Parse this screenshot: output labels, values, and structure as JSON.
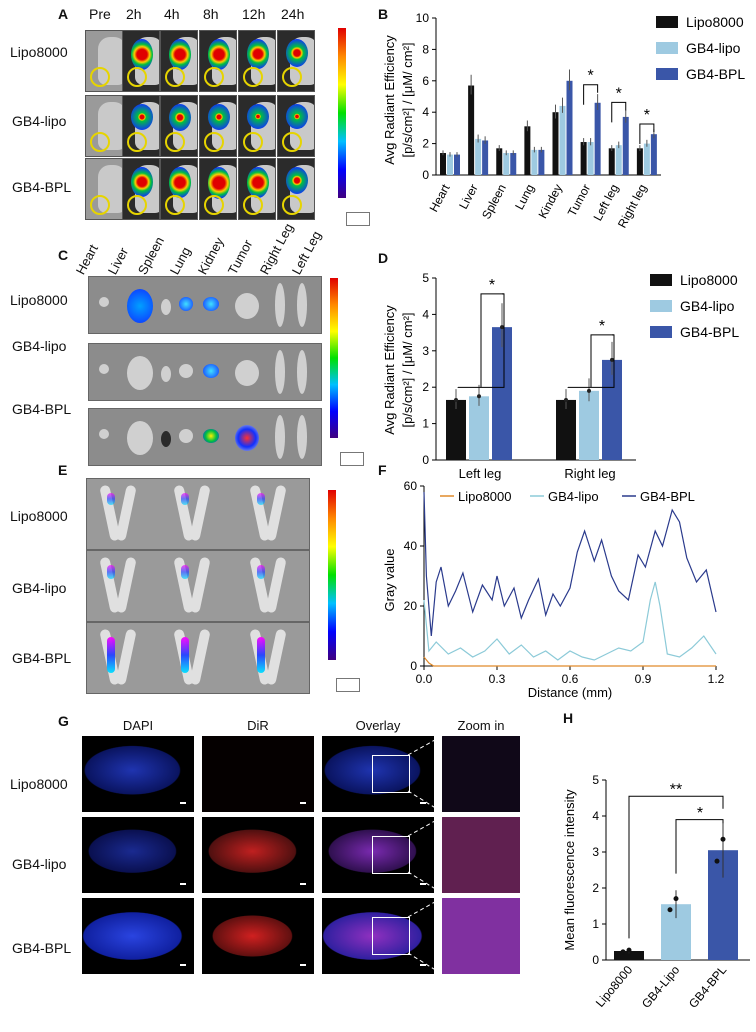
{
  "panels": {
    "a": "A",
    "b": "B",
    "c": "C",
    "d": "D",
    "e": "E",
    "f": "F",
    "g": "G",
    "h": "H"
  },
  "groups": [
    "Lipo8000",
    "GB4-lipo",
    "GB4-BPL"
  ],
  "panel_a": {
    "timepoints": [
      "Pre",
      "2h",
      "4h",
      "8h",
      "12h",
      "24h"
    ]
  },
  "panel_c": {
    "organs": [
      "Heart",
      "Liver",
      "Spleen",
      "Lung",
      "Kidney",
      "Tumor",
      "Right Leg",
      "Left Leg"
    ]
  },
  "panel_g": {
    "columns": [
      "DAPI",
      "DiR",
      "Overlay",
      "Zoom in"
    ]
  },
  "colors": {
    "lipo8000": "#111111",
    "gb4lipo": "#9ecae1",
    "gb4bpl": "#3a56a8"
  },
  "chart_data": [
    {
      "id": "B",
      "type": "bar",
      "title": "",
      "ylabel_line1": "Avg Radiant Efficiency",
      "ylabel_line2": "[p/s/cm²] / [μM/ cm²]",
      "categories": [
        "Heart",
        "Liver",
        "Spleen",
        "Lung",
        "Kindey",
        "Tumor",
        "Left leg",
        "Right leg"
      ],
      "ylim": [
        0,
        10
      ],
      "yticks": [
        "0",
        "2",
        "4",
        "6",
        "8",
        "10"
      ],
      "series": [
        {
          "name": "Lipo8000",
          "values": [
            1.4,
            5.7,
            1.7,
            3.1,
            4.0,
            2.1,
            1.7,
            1.7
          ]
        },
        {
          "name": "GB4-lipo",
          "values": [
            1.3,
            2.3,
            1.4,
            1.6,
            4.4,
            2.1,
            1.9,
            2.0
          ]
        },
        {
          "name": "GB4-BPL",
          "values": [
            1.3,
            2.2,
            1.4,
            1.6,
            6.0,
            4.6,
            3.7,
            2.6
          ]
        }
      ],
      "significance": [
        "*",
        "*",
        "*"
      ]
    },
    {
      "id": "D",
      "type": "bar",
      "ylabel_line1": "Avg Radiant Efficiency",
      "ylabel_line2": "[p/s/cm²] / [μM/ cm²]",
      "categories": [
        "Left leg",
        "Right leg"
      ],
      "ylim": [
        0,
        5
      ],
      "yticks": [
        "0",
        "1",
        "2",
        "3",
        "4",
        "5"
      ],
      "series": [
        {
          "name": "Lipo8000",
          "values": [
            1.65,
            1.65
          ]
        },
        {
          "name": "GB4-lipo",
          "values": [
            1.75,
            1.9
          ]
        },
        {
          "name": "GB4-BPL",
          "values": [
            3.65,
            2.75
          ]
        }
      ],
      "significance": [
        "*",
        "*"
      ]
    },
    {
      "id": "F",
      "type": "line",
      "xlabel": "Distance (mm)",
      "ylabel": "Gray value",
      "xlim": [
        0,
        1.2
      ],
      "ylim": [
        0,
        60
      ],
      "xticks": [
        "0.0",
        "0.3",
        "0.6",
        "0.9",
        "1.2"
      ],
      "yticks": [
        "0",
        "20",
        "40",
        "60"
      ],
      "series": [
        {
          "name": "Lipo8000",
          "x": [
            0,
            0.02,
            0.04,
            1.2
          ],
          "y": [
            3,
            1,
            0,
            0
          ]
        },
        {
          "name": "GB4-lipo",
          "x": [
            0,
            0.02,
            0.05,
            0.1,
            0.15,
            0.2,
            0.25,
            0.3,
            0.35,
            0.4,
            0.45,
            0.5,
            0.55,
            0.6,
            0.65,
            0.7,
            0.75,
            0.8,
            0.85,
            0.9,
            0.93,
            0.95,
            0.97,
            1.0,
            1.05,
            1.1,
            1.15,
            1.2
          ],
          "y": [
            22,
            5,
            8,
            4,
            6,
            3,
            5,
            9,
            4,
            7,
            3,
            5,
            2,
            5,
            3,
            2,
            4,
            6,
            5,
            8,
            22,
            28,
            20,
            4,
            3,
            6,
            10,
            4
          ]
        },
        {
          "name": "GB4-BPL",
          "x": [
            0,
            0.01,
            0.03,
            0.05,
            0.07,
            0.1,
            0.13,
            0.16,
            0.2,
            0.24,
            0.28,
            0.3,
            0.33,
            0.37,
            0.4,
            0.43,
            0.47,
            0.5,
            0.53,
            0.56,
            0.6,
            0.63,
            0.66,
            0.7,
            0.73,
            0.77,
            0.8,
            0.84,
            0.88,
            0.91,
            0.95,
            0.98,
            1.02,
            1.05,
            1.08,
            1.12,
            1.16,
            1.2
          ],
          "y": [
            58,
            30,
            10,
            28,
            33,
            20,
            25,
            31,
            18,
            27,
            22,
            30,
            20,
            26,
            16,
            22,
            29,
            17,
            24,
            20,
            26,
            38,
            45,
            35,
            42,
            30,
            25,
            22,
            37,
            33,
            45,
            40,
            52,
            48,
            36,
            28,
            32,
            18
          ]
        }
      ]
    },
    {
      "id": "H",
      "type": "bar",
      "ylabel": "Mean fluorescence intensity",
      "categories": [
        "Lipo8000",
        "GB4-Lipo",
        "GB4-BPL"
      ],
      "values": [
        0.25,
        1.55,
        3.05
      ],
      "ylim": [
        0,
        5
      ],
      "yticks": [
        "0",
        "1",
        "2",
        "3",
        "4",
        "5"
      ],
      "significance": [
        "**",
        "*"
      ]
    }
  ]
}
